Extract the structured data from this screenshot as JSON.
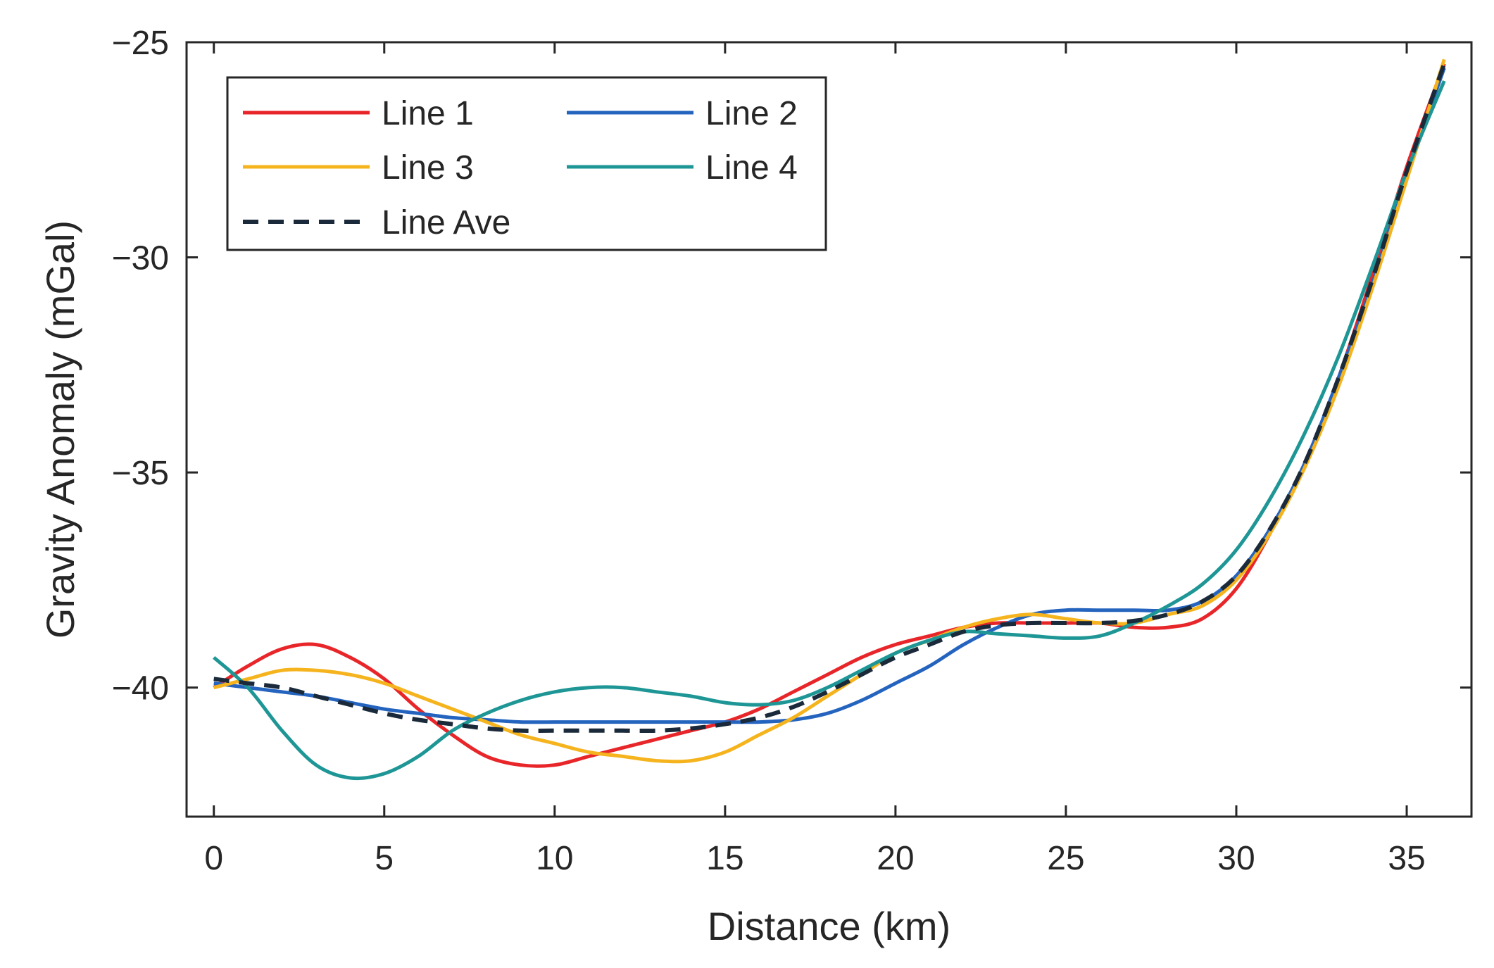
{
  "chart_data": {
    "type": "line",
    "title": "",
    "xlabel": "Distance (km)",
    "ylabel": "Gravity Anomaly (mGal)",
    "xlim": [
      -0.8,
      36.9
    ],
    "ylim": [
      -43,
      -25
    ],
    "xticks": [
      0,
      5,
      10,
      15,
      20,
      25,
      30,
      35
    ],
    "yticks": [
      -25,
      -30,
      -35,
      -40
    ],
    "ytick_labels": [
      "−25",
      "−30",
      "−35",
      "−40"
    ],
    "grid": false,
    "legend": {
      "position": "top-left",
      "columns": 2
    },
    "series": [
      {
        "name": "Line 1",
        "color": "#e8262a",
        "dash": false,
        "x": [
          0,
          1,
          2,
          3,
          4,
          5,
          6,
          7,
          8,
          9,
          10,
          11,
          12,
          13,
          14,
          15,
          16,
          17,
          18,
          19,
          20,
          21,
          22,
          23,
          24,
          25,
          26,
          27,
          28,
          29,
          30,
          31,
          32,
          33,
          34,
          35,
          36.1
        ],
        "y": [
          -40.0,
          -39.5,
          -39.1,
          -39.0,
          -39.3,
          -39.8,
          -40.5,
          -41.1,
          -41.6,
          -41.8,
          -41.8,
          -41.6,
          -41.4,
          -41.2,
          -41.0,
          -40.8,
          -40.5,
          -40.1,
          -39.7,
          -39.3,
          -39.0,
          -38.8,
          -38.6,
          -38.5,
          -38.5,
          -38.5,
          -38.5,
          -38.6,
          -38.6,
          -38.4,
          -37.7,
          -36.4,
          -34.8,
          -32.8,
          -30.4,
          -27.9,
          -25.5
        ]
      },
      {
        "name": "Line 2",
        "color": "#2464be",
        "dash": false,
        "x": [
          0,
          1,
          2,
          3,
          4,
          5,
          6,
          7,
          8,
          9,
          10,
          11,
          12,
          13,
          14,
          15,
          16,
          17,
          18,
          19,
          20,
          21,
          22,
          23,
          24,
          25,
          26,
          27,
          28,
          29,
          30,
          31,
          32,
          33,
          34,
          35,
          36.1
        ],
        "y": [
          -39.9,
          -40.0,
          -40.1,
          -40.2,
          -40.35,
          -40.5,
          -40.6,
          -40.7,
          -40.75,
          -40.8,
          -40.8,
          -40.8,
          -40.8,
          -40.8,
          -40.8,
          -40.8,
          -40.8,
          -40.75,
          -40.6,
          -40.3,
          -39.9,
          -39.5,
          -39.0,
          -38.6,
          -38.3,
          -38.2,
          -38.2,
          -38.2,
          -38.2,
          -38.0,
          -37.4,
          -36.3,
          -34.8,
          -32.8,
          -30.6,
          -28.1,
          -25.6
        ]
      },
      {
        "name": "Line 3",
        "color": "#f5b41e",
        "dash": false,
        "x": [
          0,
          1,
          2,
          3,
          4,
          5,
          6,
          7,
          8,
          9,
          10,
          11,
          12,
          13,
          14,
          15,
          16,
          17,
          18,
          19,
          20,
          21,
          22,
          23,
          24,
          25,
          26,
          27,
          28,
          29,
          30,
          31,
          32,
          33,
          34,
          35,
          36.1
        ],
        "y": [
          -40.0,
          -39.8,
          -39.6,
          -39.6,
          -39.7,
          -39.9,
          -40.2,
          -40.5,
          -40.8,
          -41.1,
          -41.3,
          -41.5,
          -41.6,
          -41.7,
          -41.7,
          -41.5,
          -41.1,
          -40.7,
          -40.2,
          -39.7,
          -39.2,
          -38.9,
          -38.6,
          -38.4,
          -38.3,
          -38.4,
          -38.5,
          -38.5,
          -38.3,
          -38.1,
          -37.5,
          -36.4,
          -34.9,
          -33.0,
          -30.7,
          -28.2,
          -25.4
        ]
      },
      {
        "name": "Line 4",
        "color": "#1f9696",
        "dash": false,
        "x": [
          0,
          1,
          2,
          3,
          4,
          5,
          6,
          7,
          8,
          9,
          10,
          11,
          12,
          13,
          14,
          15,
          16,
          17,
          18,
          19,
          20,
          21,
          22,
          23,
          24,
          25,
          26,
          27,
          28,
          29,
          30,
          31,
          32,
          33,
          34,
          35,
          36.1
        ],
        "y": [
          -39.3,
          -40.0,
          -41.0,
          -41.8,
          -42.1,
          -42.0,
          -41.6,
          -41.0,
          -40.6,
          -40.3,
          -40.1,
          -40.0,
          -40.0,
          -40.1,
          -40.2,
          -40.35,
          -40.4,
          -40.3,
          -40.0,
          -39.6,
          -39.2,
          -38.9,
          -38.7,
          -38.75,
          -38.8,
          -38.85,
          -38.8,
          -38.5,
          -38.1,
          -37.6,
          -36.8,
          -35.6,
          -34.1,
          -32.3,
          -30.2,
          -28.0,
          -25.9
        ]
      },
      {
        "name": "Line Ave",
        "color": "#1a2a3a",
        "dash": true,
        "x": [
          0,
          1,
          2,
          3,
          4,
          5,
          6,
          7,
          8,
          9,
          10,
          11,
          12,
          13,
          14,
          15,
          16,
          17,
          18,
          19,
          20,
          21,
          22,
          23,
          24,
          25,
          26,
          27,
          28,
          29,
          30,
          31,
          32,
          33,
          34,
          35,
          36.1
        ],
        "y": [
          -39.8,
          -39.9,
          -40.0,
          -40.2,
          -40.4,
          -40.6,
          -40.75,
          -40.85,
          -40.95,
          -41.0,
          -41.0,
          -41.0,
          -41.0,
          -41.0,
          -40.95,
          -40.85,
          -40.7,
          -40.45,
          -40.1,
          -39.7,
          -39.3,
          -39.0,
          -38.7,
          -38.55,
          -38.5,
          -38.5,
          -38.5,
          -38.45,
          -38.3,
          -38.0,
          -37.4,
          -36.3,
          -34.8,
          -32.8,
          -30.5,
          -28.0,
          -25.5
        ]
      }
    ]
  }
}
